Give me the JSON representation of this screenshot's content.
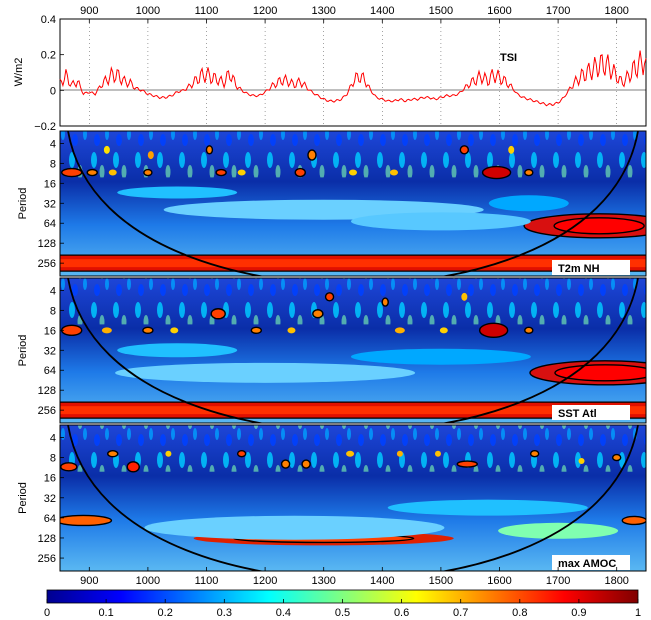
{
  "chart_data": [
    {
      "type": "line",
      "label": "TSI",
      "ylabel": "W/m2",
      "xlim": [
        850,
        1850
      ],
      "ylim": [
        -0.2,
        0.4
      ],
      "yticks": [
        -0.2,
        0,
        0.2,
        0.4
      ],
      "x_ticks": [
        900,
        1000,
        1100,
        1200,
        1300,
        1400,
        1500,
        1600,
        1700,
        1800
      ],
      "line_color": "#ff0000",
      "series": [
        {
          "x": [
            850,
            860,
            870,
            880,
            890,
            900,
            910,
            920,
            930,
            940,
            950,
            960,
            970,
            980,
            990,
            1000,
            1010,
            1020,
            1030,
            1040,
            1050,
            1060,
            1070,
            1080,
            1090,
            1100,
            1110,
            1120,
            1130,
            1140,
            1150,
            1160,
            1170,
            1180,
            1190,
            1200,
            1210,
            1220,
            1230,
            1240,
            1250,
            1260,
            1270,
            1280,
            1290,
            1300,
            1310,
            1320,
            1330,
            1340,
            1350,
            1360,
            1370,
            1380,
            1390,
            1400,
            1410,
            1420,
            1430,
            1440,
            1450,
            1460,
            1470,
            1480,
            1490,
            1500,
            1510,
            1520,
            1530,
            1540,
            1550,
            1560,
            1570,
            1580,
            1590,
            1600,
            1610,
            1620,
            1630,
            1640,
            1650,
            1660,
            1670,
            1680,
            1690,
            1700,
            1710,
            1720,
            1730,
            1740,
            1750,
            1760,
            1770,
            1780,
            1790,
            1800,
            1810,
            1820,
            1830,
            1840,
            1850
          ],
          "y": [
            0.04,
            0.08,
            0.03,
            0.05,
            -0.02,
            -0.01,
            -0.02,
            0.03,
            0.06,
            0.09,
            0.08,
            0.05,
            0.04,
            0.01,
            0.0,
            -0.02,
            -0.03,
            -0.04,
            -0.04,
            -0.03,
            -0.01,
            0.0,
            0.02,
            0.05,
            0.08,
            0.09,
            0.07,
            0.06,
            0.04,
            0.1,
            0.03,
            0.0,
            -0.02,
            -0.03,
            -0.03,
            -0.01,
            0.02,
            0.04,
            0.06,
            0.05,
            0.03,
            0.05,
            0.02,
            -0.01,
            -0.03,
            -0.05,
            -0.06,
            -0.06,
            -0.05,
            -0.02,
            0.05,
            0.08,
            0.06,
            0.0,
            -0.04,
            -0.05,
            -0.06,
            -0.06,
            -0.05,
            -0.06,
            -0.05,
            -0.05,
            -0.04,
            -0.04,
            -0.05,
            -0.04,
            -0.03,
            -0.03,
            -0.02,
            0.01,
            0.04,
            0.06,
            0.08,
            0.05,
            0.09,
            0.07,
            0.05,
            0.02,
            -0.02,
            -0.04,
            -0.05,
            -0.06,
            -0.07,
            -0.08,
            -0.08,
            -0.07,
            -0.04,
            0.01,
            0.05,
            0.08,
            0.1,
            0.12,
            0.14,
            0.15,
            0.12,
            0.08,
            0.04,
            0.08,
            0.12,
            0.15,
            0.18
          ]
        }
      ]
    },
    {
      "type": "heatmap",
      "label": "T2m NH",
      "ylabel": "Period",
      "xlim": [
        850,
        1850
      ],
      "y_ticks": [
        4,
        8,
        16,
        32,
        64,
        128,
        256
      ],
      "y_scale": "log2",
      "note": "wavelet power spectrum with cone of influence and significance contours"
    },
    {
      "type": "heatmap",
      "label": "SST Atl",
      "ylabel": "Period",
      "xlim": [
        850,
        1850
      ],
      "y_ticks": [
        4,
        8,
        16,
        32,
        64,
        128,
        256
      ],
      "y_scale": "log2"
    },
    {
      "type": "heatmap",
      "label": "max AMOC",
      "ylabel": "Period",
      "xlim": [
        850,
        1850
      ],
      "y_ticks": [
        4,
        8,
        16,
        32,
        64,
        128,
        256
      ],
      "y_scale": "log2",
      "x_ticks": [
        900,
        1000,
        1100,
        1200,
        1300,
        1400,
        1500,
        1600,
        1700,
        1800
      ]
    }
  ],
  "colorbar": {
    "ticks": [
      "0",
      "0.1",
      "0.2",
      "0.3",
      "0.4",
      "0.5",
      "0.6",
      "0.7",
      "0.8",
      "0.9",
      "1"
    ],
    "colormap": [
      "#00008f",
      "#0000ff",
      "#0080ff",
      "#00ffff",
      "#80ff80",
      "#ffff00",
      "#ff8000",
      "#ff0000",
      "#800000"
    ]
  },
  "labels": {
    "top_axis_ticks": [
      "900",
      "1000",
      "1100",
      "1200",
      "1300",
      "1400",
      "1500",
      "1600",
      "1700",
      "1800"
    ],
    "bottom_axis_ticks": [
      "900",
      "1000",
      "1100",
      "1200",
      "1300",
      "1400",
      "1500",
      "1600",
      "1700",
      "1800"
    ],
    "tsi_yticks": [
      "−0.2",
      "0",
      "0.2",
      "0.4"
    ],
    "period_ticks": [
      "4",
      "8",
      "16",
      "32",
      "64",
      "128",
      "256"
    ]
  }
}
